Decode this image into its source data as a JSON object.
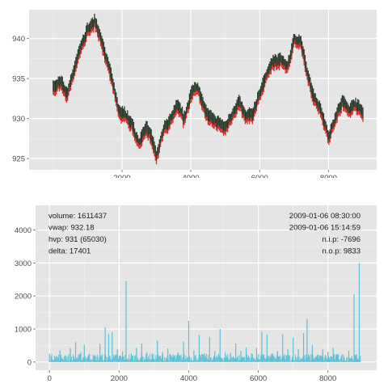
{
  "chart_data": [
    {
      "type": "line",
      "title": "",
      "xlabel": "",
      "ylabel": "",
      "xlim": [
        -700,
        9400
      ],
      "ylim": [
        923.6,
        943.6
      ],
      "grid": true,
      "xticks": [
        2000,
        4000,
        6000,
        8000
      ],
      "xtick_labels": [
        "2000",
        "4000",
        "6000",
        "8000"
      ],
      "yticks": [
        925,
        930,
        935,
        940
      ],
      "ytick_labels": [
        "925",
        "930",
        "935",
        "940"
      ],
      "colors": {
        "body": "#2b3a2b",
        "low_wick": "#d7302b",
        "panel_bg": "#e5e5e5",
        "grid": "#ffffff"
      },
      "series": [
        {
          "x": [
            0,
            200,
            400,
            600,
            800,
            1000,
            1200,
            1350,
            1500,
            1700,
            1900,
            2100,
            2300,
            2500,
            2700,
            2900,
            3000,
            3200,
            3400,
            3600,
            3800,
            4000,
            4200,
            4400,
            4600,
            4800,
            5000,
            5200,
            5400,
            5600,
            5800,
            6000,
            6200,
            6400,
            6600,
            6800,
            7000,
            7200,
            7400,
            7600,
            7800,
            8000,
            8200,
            8400,
            8600,
            8800,
            9000
          ],
          "values": [
            934,
            934.5,
            933,
            936,
            939,
            941,
            942.2,
            940.5,
            938,
            935,
            931,
            930.5,
            929.5,
            927,
            928.8,
            927,
            925.2,
            928.2,
            929.5,
            931.5,
            929.5,
            933,
            933.8,
            931.5,
            930,
            929.2,
            928.6,
            930.5,
            932,
            929.8,
            930.2,
            933,
            935.5,
            937,
            937.5,
            936,
            940,
            939.5,
            935,
            932.5,
            931,
            928,
            930,
            932,
            931,
            931.8,
            930.5
          ]
        }
      ]
    },
    {
      "type": "bar",
      "title": "",
      "xlabel": "",
      "ylabel": "",
      "xlim": [
        -400,
        9400
      ],
      "ylim": [
        -250,
        4750
      ],
      "grid": true,
      "xticks": [
        0,
        2000,
        4000,
        6000,
        8000
      ],
      "xtick_labels": [
        "0",
        "2000",
        "4000",
        "6000",
        "8000"
      ],
      "yticks": [
        0,
        1000,
        2000,
        3000,
        4000
      ],
      "ytick_labels": [
        "0",
        "1000",
        "2000",
        "3000",
        "4000"
      ],
      "colors": {
        "bar": "#5bc0d4",
        "panel_bg": "#e5e5e5",
        "grid": "#ffffff"
      },
      "series": [
        {
          "x": [
            0,
            150,
            300,
            450,
            600,
            750,
            900,
            1000,
            1150,
            1300,
            1450,
            1600,
            1700,
            1800,
            1950,
            2100,
            2200,
            2350,
            2500,
            2650,
            2800,
            2950,
            3100,
            3250,
            3400,
            3550,
            3700,
            3850,
            4000,
            4150,
            4300,
            4450,
            4600,
            4750,
            4900,
            5050,
            5200,
            5350,
            5500,
            5650,
            5800,
            5950,
            6100,
            6250,
            6400,
            6550,
            6700,
            6850,
            7000,
            7150,
            7300,
            7400,
            7550,
            7700,
            7850,
            8000,
            8150,
            8300,
            8450,
            8600,
            8750,
            8800,
            8900
          ],
          "values": [
            250,
            180,
            350,
            200,
            420,
            600,
            300,
            520,
            250,
            180,
            550,
            1050,
            850,
            900,
            380,
            320,
            2450,
            260,
            430,
            560,
            300,
            260,
            650,
            300,
            410,
            230,
            280,
            610,
            1250,
            350,
            820,
            260,
            760,
            330,
            1000,
            300,
            280,
            560,
            330,
            440,
            260,
            420,
            920,
            830,
            260,
            330,
            850,
            380,
            740,
            390,
            880,
            1300,
            520,
            220,
            380,
            310,
            430,
            230,
            180,
            340,
            2050,
            220,
            3000
          ]
        }
      ],
      "annotations_left": [
        "volume: 1611437",
        "vwap: 932.18",
        "hvp: 931 (65030)",
        "delta: 17401"
      ],
      "annotations_right": [
        "2009-01-06 08:30:00",
        "2009-01-06 15:14:59",
        "n.i.p:  -7696",
        "n.o.p:  9833"
      ]
    }
  ]
}
